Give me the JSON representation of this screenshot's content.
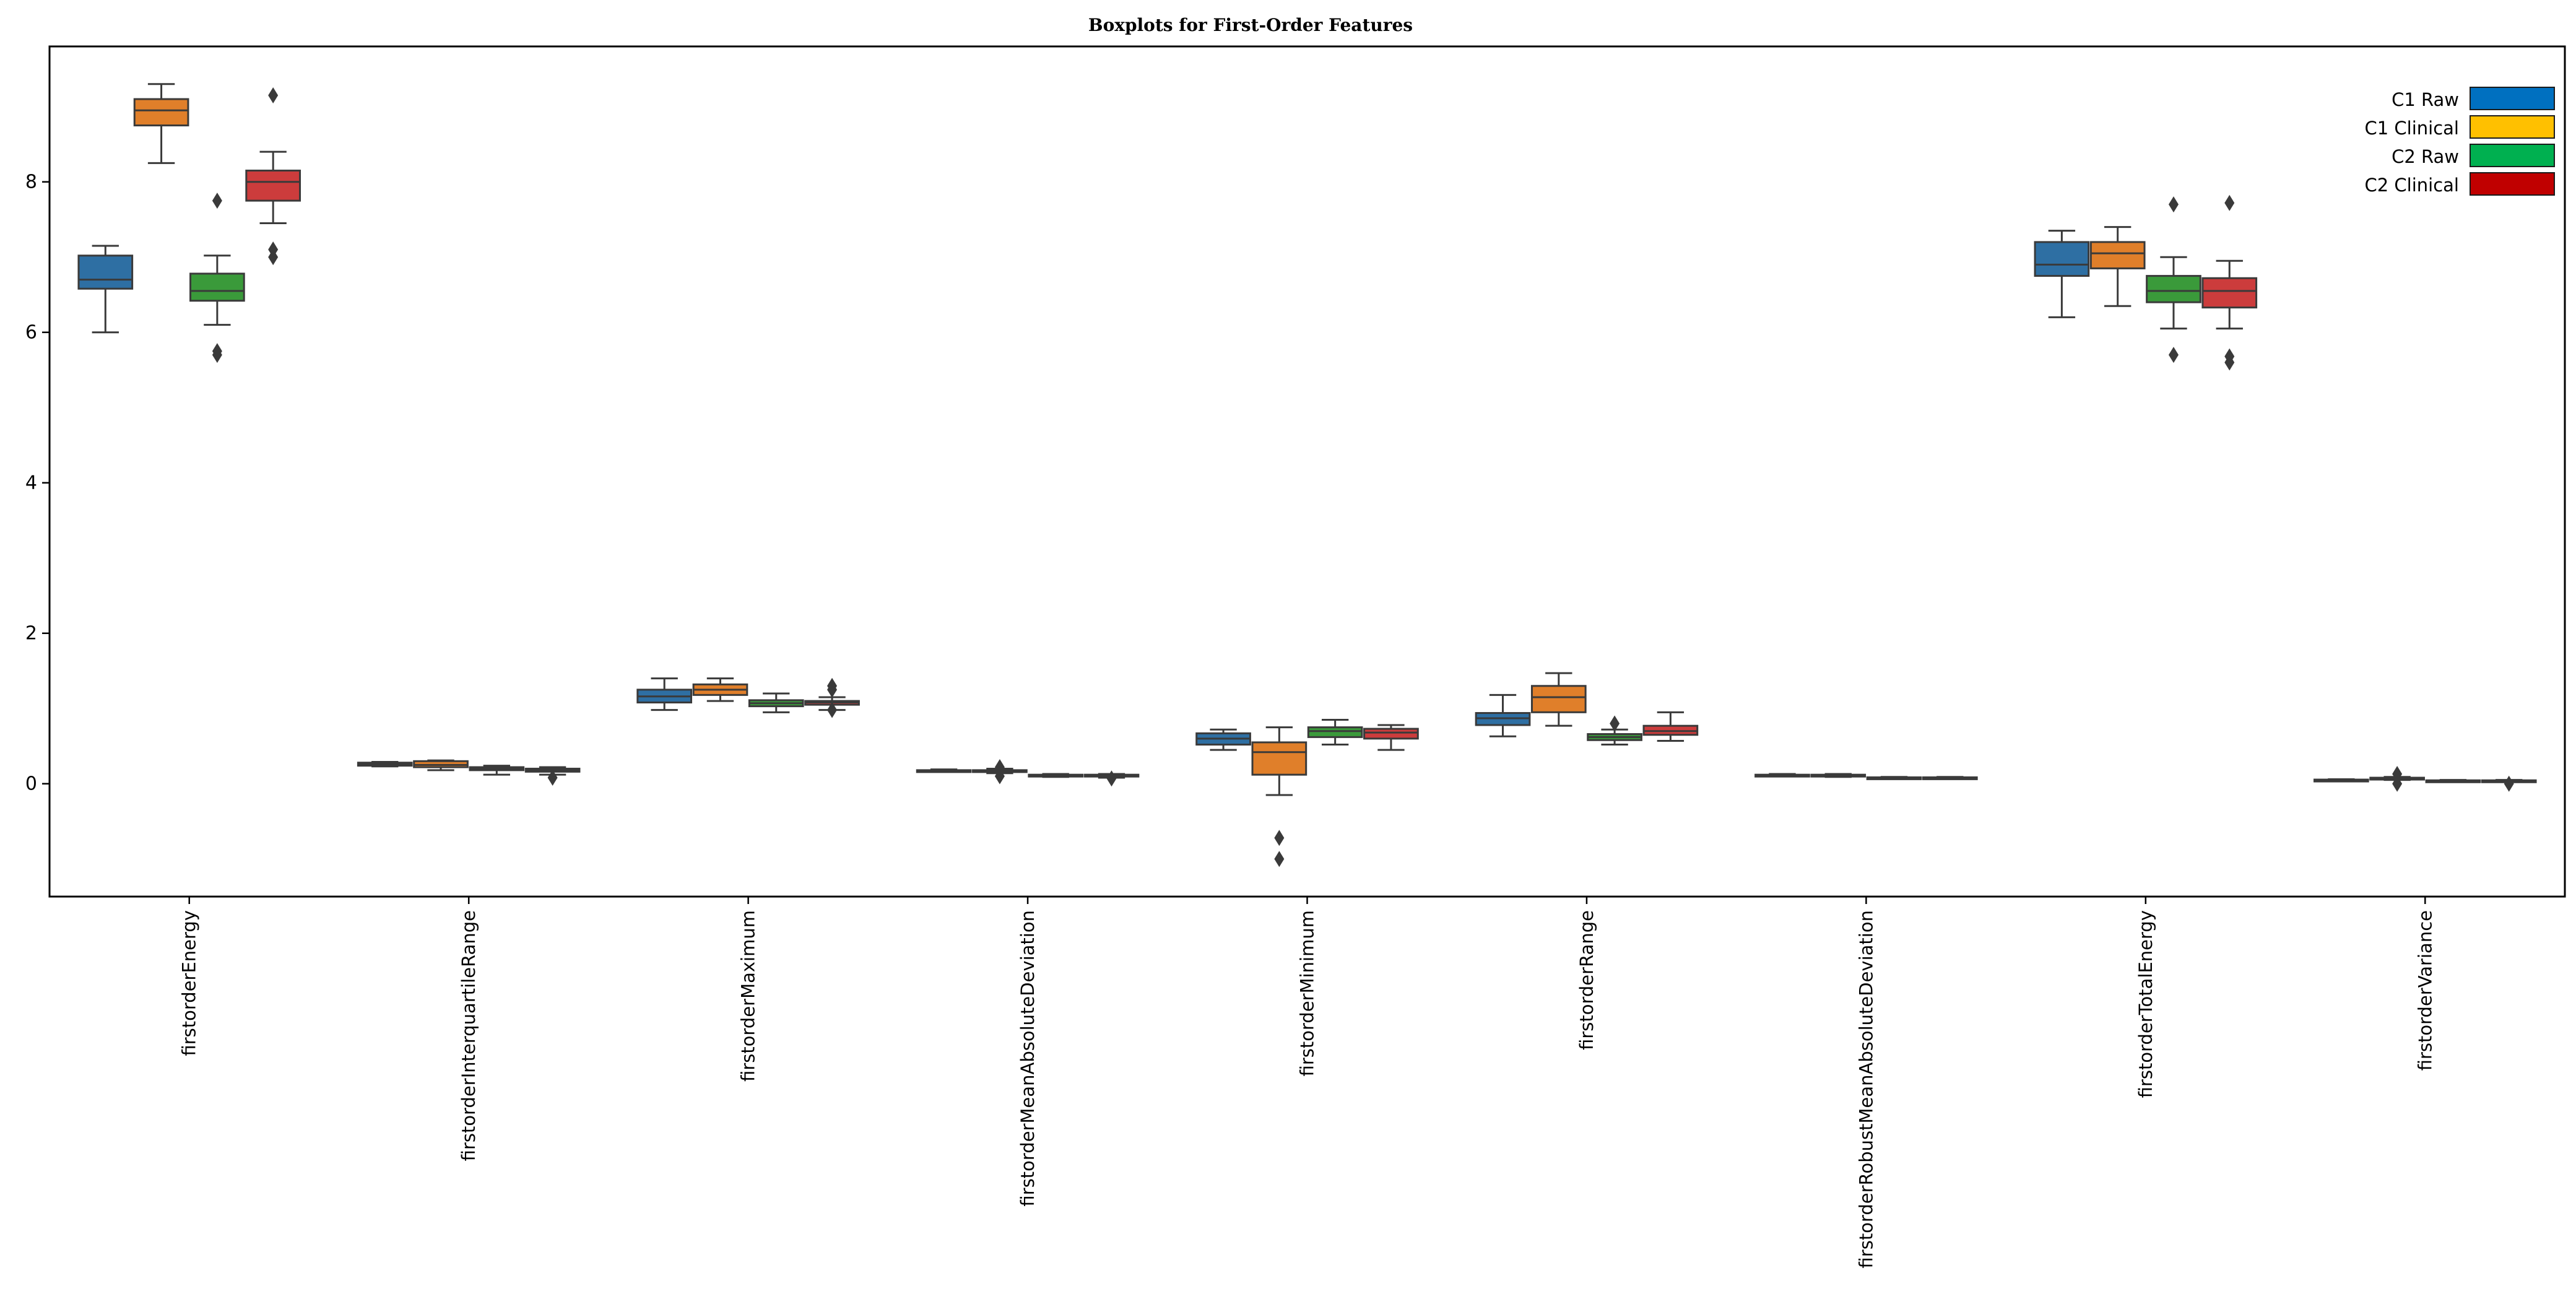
{
  "chart_data": {
    "type": "boxplot",
    "title": "Boxplots for First-Order Features",
    "xlabel": "",
    "ylabel": "",
    "ylim": [
      -1.5,
      9.8
    ],
    "yticks": [
      0,
      2,
      4,
      6,
      8
    ],
    "grid": false,
    "legend_position": "top-right",
    "categories": [
      "firstorderEnergy",
      "firstorderInterquartileRange",
      "firstorderMaximum",
      "firstorderMeanAbsoluteDeviation",
      "firstorderMinimum",
      "firstorderRange",
      "firstorderRobustMeanAbsoluteDeviation",
      "firstorderTotalEnergy",
      "firstorderVariance"
    ],
    "series": [
      {
        "name": "C1 Raw",
        "legend_color": "#0070C0",
        "box_color": "#2E6FA3",
        "boxes": [
          {
            "whisker_low": 6.0,
            "q1": 6.58,
            "median": 6.7,
            "q3": 7.02,
            "whisker_high": 7.15,
            "outliers": []
          },
          {
            "whisker_low": 0.23,
            "q1": 0.24,
            "median": 0.26,
            "q3": 0.28,
            "whisker_high": 0.29,
            "outliers": []
          },
          {
            "whisker_low": 0.98,
            "q1": 1.08,
            "median": 1.16,
            "q3": 1.25,
            "whisker_high": 1.4,
            "outliers": []
          },
          {
            "whisker_low": 0.16,
            "q1": 0.17,
            "median": 0.175,
            "q3": 0.18,
            "whisker_high": 0.19,
            "outliers": []
          },
          {
            "whisker_low": 0.45,
            "q1": 0.52,
            "median": 0.6,
            "q3": 0.67,
            "whisker_high": 0.72,
            "outliers": []
          },
          {
            "whisker_low": 0.63,
            "q1": 0.78,
            "median": 0.87,
            "q3": 0.94,
            "whisker_high": 1.18,
            "outliers": []
          },
          {
            "whisker_low": 0.1,
            "q1": 0.11,
            "median": 0.115,
            "q3": 0.12,
            "whisker_high": 0.13,
            "outliers": []
          },
          {
            "whisker_low": 6.2,
            "q1": 6.75,
            "median": 6.9,
            "q3": 7.2,
            "whisker_high": 7.35,
            "outliers": []
          },
          {
            "whisker_low": 0.04,
            "q1": 0.045,
            "median": 0.05,
            "q3": 0.055,
            "whisker_high": 0.06,
            "outliers": []
          }
        ]
      },
      {
        "name": "C1 Clinical",
        "legend_color": "#FFC000",
        "box_color": "#E07F2A",
        "boxes": [
          {
            "whisker_low": 8.25,
            "q1": 8.75,
            "median": 8.95,
            "q3": 9.1,
            "whisker_high": 9.3,
            "outliers": []
          },
          {
            "whisker_low": 0.18,
            "q1": 0.22,
            "median": 0.25,
            "q3": 0.3,
            "whisker_high": 0.31,
            "outliers": []
          },
          {
            "whisker_low": 1.1,
            "q1": 1.18,
            "median": 1.25,
            "q3": 1.32,
            "whisker_high": 1.4,
            "outliers": []
          },
          {
            "whisker_low": 0.14,
            "q1": 0.16,
            "median": 0.17,
            "q3": 0.18,
            "whisker_high": 0.2,
            "outliers": [
              0.1,
              0.22
            ]
          },
          {
            "whisker_low": -0.15,
            "q1": 0.12,
            "median": 0.42,
            "q3": 0.55,
            "whisker_high": 0.75,
            "outliers": [
              -0.72,
              -1.0
            ]
          },
          {
            "whisker_low": 0.77,
            "q1": 0.95,
            "median": 1.15,
            "q3": 1.3,
            "whisker_high": 1.47,
            "outliers": []
          },
          {
            "whisker_low": 0.09,
            "q1": 0.1,
            "median": 0.11,
            "q3": 0.12,
            "whisker_high": 0.13,
            "outliers": []
          },
          {
            "whisker_low": 6.35,
            "q1": 6.85,
            "median": 7.05,
            "q3": 7.2,
            "whisker_high": 7.4,
            "outliers": []
          },
          {
            "whisker_low": 0.05,
            "q1": 0.06,
            "median": 0.07,
            "q3": 0.08,
            "whisker_high": 0.09,
            "outliers": [
              0.0,
              0.13
            ]
          }
        ]
      },
      {
        "name": "C2 Raw",
        "legend_color": "#00B050",
        "box_color": "#3A9A3A",
        "boxes": [
          {
            "whisker_low": 6.1,
            "q1": 6.42,
            "median": 6.55,
            "q3": 6.78,
            "whisker_high": 7.02,
            "outliers": [
              7.75,
              5.75,
              5.7
            ]
          },
          {
            "whisker_low": 0.12,
            "q1": 0.18,
            "median": 0.2,
            "q3": 0.22,
            "whisker_high": 0.24,
            "outliers": []
          },
          {
            "whisker_low": 0.95,
            "q1": 1.03,
            "median": 1.07,
            "q3": 1.11,
            "whisker_high": 1.2,
            "outliers": []
          },
          {
            "whisker_low": 0.09,
            "q1": 0.1,
            "median": 0.11,
            "q3": 0.12,
            "whisker_high": 0.13,
            "outliers": []
          },
          {
            "whisker_low": 0.52,
            "q1": 0.62,
            "median": 0.7,
            "q3": 0.75,
            "whisker_high": 0.85,
            "outliers": []
          },
          {
            "whisker_low": 0.52,
            "q1": 0.58,
            "median": 0.62,
            "q3": 0.66,
            "whisker_high": 0.72,
            "outliers": [
              0.8
            ]
          },
          {
            "whisker_low": 0.07,
            "q1": 0.075,
            "median": 0.08,
            "q3": 0.085,
            "whisker_high": 0.09,
            "outliers": []
          },
          {
            "whisker_low": 6.05,
            "q1": 6.4,
            "median": 6.55,
            "q3": 6.75,
            "whisker_high": 7.0,
            "outliers": [
              7.7,
              5.7
            ]
          },
          {
            "whisker_low": 0.03,
            "q1": 0.035,
            "median": 0.04,
            "q3": 0.045,
            "whisker_high": 0.05,
            "outliers": []
          }
        ]
      },
      {
        "name": "C2 Clinical",
        "legend_color": "#C00000",
        "box_color": "#CC3C3C",
        "boxes": [
          {
            "whisker_low": 7.45,
            "q1": 7.75,
            "median": 8.0,
            "q3": 8.15,
            "whisker_high": 8.4,
            "outliers": [
              9.15,
              7.1,
              7.0
            ]
          },
          {
            "whisker_low": 0.12,
            "q1": 0.16,
            "median": 0.18,
            "q3": 0.2,
            "whisker_high": 0.22,
            "outliers": [
              0.08
            ]
          },
          {
            "whisker_low": 0.98,
            "q1": 1.05,
            "median": 1.08,
            "q3": 1.1,
            "whisker_high": 1.15,
            "outliers": [
              1.3,
              1.25,
              0.98
            ]
          },
          {
            "whisker_low": 0.08,
            "q1": 0.1,
            "median": 0.11,
            "q3": 0.12,
            "whisker_high": 0.13,
            "outliers": [
              0.07
            ]
          },
          {
            "whisker_low": 0.45,
            "q1": 0.6,
            "median": 0.68,
            "q3": 0.73,
            "whisker_high": 0.78,
            "outliers": []
          },
          {
            "whisker_low": 0.57,
            "q1": 0.65,
            "median": 0.7,
            "q3": 0.77,
            "whisker_high": 0.95,
            "outliers": []
          },
          {
            "whisker_low": 0.07,
            "q1": 0.075,
            "median": 0.08,
            "q3": 0.085,
            "whisker_high": 0.09,
            "outliers": []
          },
          {
            "whisker_low": 6.05,
            "q1": 6.33,
            "median": 6.55,
            "q3": 6.72,
            "whisker_high": 6.95,
            "outliers": [
              7.72,
              5.68,
              5.6
            ]
          },
          {
            "whisker_low": 0.03,
            "q1": 0.035,
            "median": 0.04,
            "q3": 0.045,
            "whisker_high": 0.05,
            "outliers": [
              0.0
            ]
          }
        ]
      }
    ]
  }
}
